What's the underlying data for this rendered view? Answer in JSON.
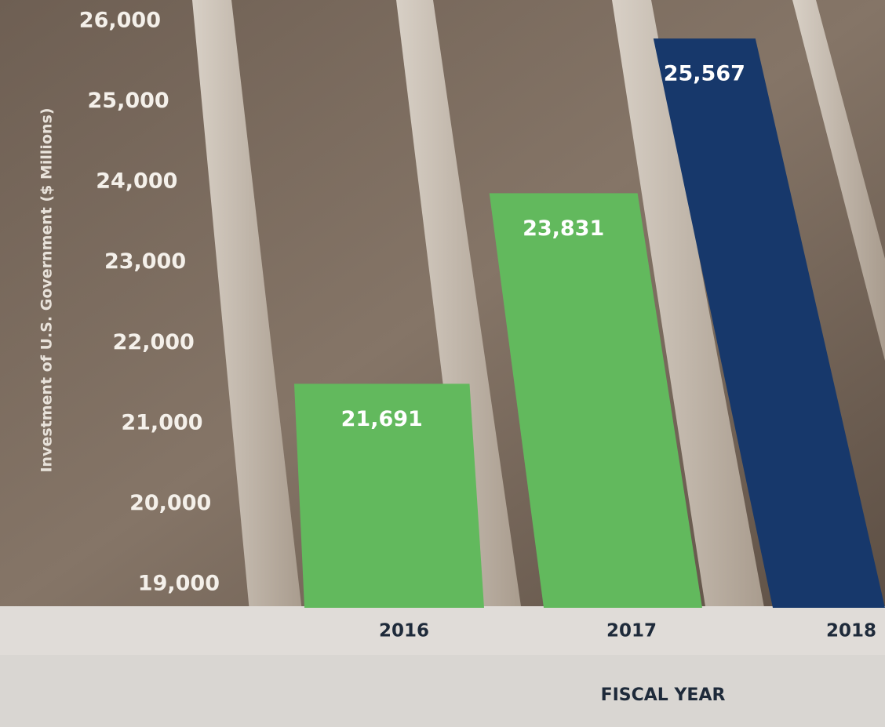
{
  "chart_data": {
    "type": "bar",
    "y_label": "Investment of U.S. Government ($ Millions)",
    "x_label": "FISCAL YEAR",
    "categories": [
      "2016",
      "2017",
      "2018"
    ],
    "values": [
      21691,
      23831,
      25567
    ],
    "value_labels": [
      "21,691",
      "23,831",
      "25,567"
    ],
    "colors": [
      "#62b95d",
      "#62b95d",
      "#17386b"
    ],
    "ylim": [
      19000,
      26000
    ],
    "yticks": [
      {
        "value": 19000,
        "label": "19,000"
      },
      {
        "value": 20000,
        "label": "20,000"
      },
      {
        "value": 21000,
        "label": "21,000"
      },
      {
        "value": 22000,
        "label": "22,000"
      },
      {
        "value": 23000,
        "label": "23,000"
      },
      {
        "value": 24000,
        "label": "24,000"
      },
      {
        "value": 25000,
        "label": "25,000"
      },
      {
        "value": 26000,
        "label": "26,000"
      }
    ]
  }
}
